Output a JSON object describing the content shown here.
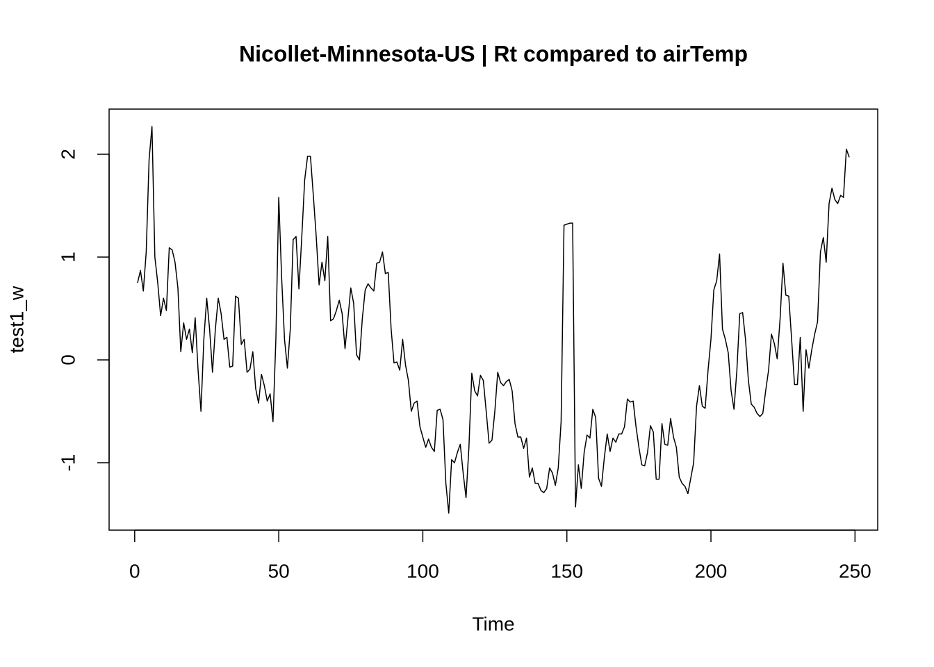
{
  "chart_data": {
    "type": "line",
    "title": "Nicollet-Minnesota-US | Rt compared to airTemp",
    "x_label": "Time",
    "y_label": "test1_w",
    "color": "#000000",
    "xlim": [
      -8.88,
      257.88
    ],
    "ylim": [
      -1.655,
      2.439
    ],
    "xticks": [
      0,
      50,
      100,
      150,
      200,
      250
    ],
    "yticks": [
      -1,
      0,
      1,
      2
    ],
    "x": [
      1,
      2,
      3,
      4,
      5,
      6,
      7,
      8,
      9,
      10,
      11,
      12,
      13,
      14,
      15,
      16,
      17,
      18,
      19,
      20,
      21,
      22,
      23,
      24,
      25,
      26,
      27,
      28,
      29,
      30,
      31,
      32,
      33,
      34,
      35,
      36,
      37,
      38,
      39,
      40,
      41,
      42,
      43,
      44,
      45,
      46,
      47,
      48,
      49,
      50,
      51,
      52,
      53,
      54,
      55,
      56,
      57,
      58,
      59,
      60,
      61,
      62,
      63,
      64,
      65,
      66,
      67,
      68,
      69,
      70,
      71,
      72,
      73,
      74,
      75,
      76,
      77,
      78,
      79,
      80,
      81,
      82,
      83,
      84,
      85,
      86,
      87,
      88,
      89,
      90,
      91,
      92,
      93,
      94,
      95,
      96,
      97,
      98,
      99,
      100,
      101,
      102,
      103,
      104,
      105,
      106,
      107,
      108,
      109,
      110,
      111,
      112,
      113,
      114,
      115,
      116,
      117,
      118,
      119,
      120,
      121,
      122,
      123,
      124,
      125,
      126,
      127,
      128,
      129,
      130,
      131,
      132,
      133,
      134,
      135,
      136,
      137,
      138,
      139,
      140,
      141,
      142,
      143,
      144,
      145,
      146,
      147,
      148,
      149,
      150,
      151,
      152,
      153,
      154,
      155,
      156,
      157,
      158,
      159,
      160,
      161,
      162,
      163,
      164,
      165,
      166,
      167,
      168,
      169,
      170,
      171,
      172,
      173,
      174,
      175,
      176,
      177,
      178,
      179,
      180,
      181,
      182,
      183,
      184,
      185,
      186,
      187,
      188,
      189,
      190,
      191,
      192,
      193,
      194,
      195,
      196,
      197,
      198,
      199,
      200,
      201,
      202,
      203,
      204,
      205,
      206,
      207,
      208,
      209,
      210,
      211,
      212,
      213,
      214,
      215,
      216,
      217,
      218,
      219,
      220,
      221,
      222,
      223,
      224,
      225,
      226,
      227,
      228,
      229,
      230,
      231,
      232,
      233,
      234,
      235,
      236,
      237,
      238,
      239,
      240,
      241,
      242,
      243,
      244,
      245,
      246,
      247,
      248
    ],
    "values": [
      0.75,
      0.87,
      0.67,
      1.05,
      1.95,
      2.27,
      1.0,
      0.75,
      0.43,
      0.6,
      0.48,
      1.09,
      1.07,
      0.95,
      0.7,
      0.08,
      0.36,
      0.2,
      0.3,
      0.07,
      0.41,
      -0.1,
      -0.5,
      0.2,
      0.6,
      0.3,
      -0.12,
      0.3,
      0.6,
      0.45,
      0.2,
      0.22,
      -0.07,
      -0.06,
      0.62,
      0.6,
      0.15,
      0.2,
      -0.12,
      -0.09,
      0.08,
      -0.28,
      -0.42,
      -0.14,
      -0.25,
      -0.4,
      -0.33,
      -0.6,
      0.2,
      1.58,
      0.8,
      0.2,
      -0.08,
      0.3,
      1.17,
      1.2,
      0.69,
      1.2,
      1.75,
      1.98,
      1.98,
      1.6,
      1.2,
      0.73,
      0.95,
      0.77,
      1.2,
      0.38,
      0.4,
      0.48,
      0.58,
      0.45,
      0.11,
      0.4,
      0.7,
      0.55,
      0.05,
      0.0,
      0.4,
      0.68,
      0.74,
      0.7,
      0.67,
      0.94,
      0.95,
      1.05,
      0.84,
      0.85,
      0.3,
      -0.03,
      -0.02,
      -0.1,
      0.2,
      -0.05,
      -0.2,
      -0.5,
      -0.42,
      -0.4,
      -0.65,
      -0.75,
      -0.85,
      -0.77,
      -0.85,
      -0.89,
      -0.49,
      -0.48,
      -0.58,
      -1.2,
      -1.49,
      -0.97,
      -1.0,
      -0.9,
      -0.82,
      -1.1,
      -1.34,
      -0.85,
      -0.13,
      -0.3,
      -0.35,
      -0.15,
      -0.2,
      -0.5,
      -0.81,
      -0.78,
      -0.5,
      -0.12,
      -0.22,
      -0.25,
      -0.21,
      -0.19,
      -0.3,
      -0.62,
      -0.75,
      -0.75,
      -0.86,
      -0.76,
      -1.14,
      -1.05,
      -1.2,
      -1.2,
      -1.27,
      -1.29,
      -1.25,
      -1.05,
      -1.1,
      -1.22,
      -1.05,
      -0.6,
      1.31,
      1.32,
      1.33,
      1.33,
      -1.43,
      -1.02,
      -1.25,
      -0.9,
      -0.73,
      -0.76,
      -0.48,
      -0.56,
      -1.15,
      -1.23,
      -0.95,
      -0.72,
      -0.89,
      -0.76,
      -0.8,
      -0.72,
      -0.72,
      -0.65,
      -0.38,
      -0.41,
      -0.4,
      -0.65,
      -0.85,
      -1.02,
      -1.03,
      -0.9,
      -0.64,
      -0.7,
      -1.16,
      -1.16,
      -0.62,
      -0.82,
      -0.83,
      -0.57,
      -0.75,
      -0.85,
      -1.14,
      -1.2,
      -1.23,
      -1.3,
      -1.15,
      -1.0,
      -0.45,
      -0.25,
      -0.45,
      -0.47,
      -0.1,
      0.2,
      0.68,
      0.77,
      1.03,
      0.3,
      0.2,
      0.07,
      -0.3,
      -0.48,
      -0.1,
      0.45,
      0.46,
      0.2,
      -0.2,
      -0.43,
      -0.46,
      -0.52,
      -0.55,
      -0.52,
      -0.3,
      -0.1,
      0.25,
      0.16,
      0.01,
      0.4,
      0.94,
      0.63,
      0.62,
      0.2,
      -0.24,
      -0.24,
      0.22,
      -0.5,
      0.1,
      -0.08,
      0.1,
      0.25,
      0.37,
      1.05,
      1.19,
      0.95,
      1.52,
      1.67,
      1.56,
      1.52,
      1.6,
      1.58,
      2.05,
      1.97
    ]
  }
}
